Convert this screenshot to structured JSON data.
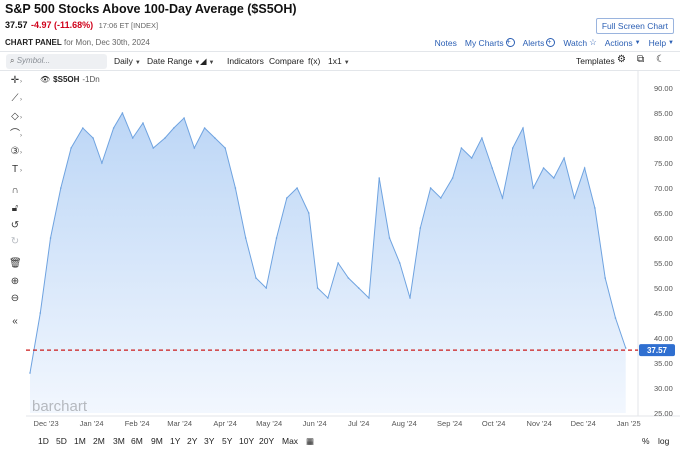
{
  "header": {
    "title": "S&P 500 Stocks Above 100-Day Average ($S5OH)",
    "last": "37.57",
    "change": "-4.97 (-11.68%)",
    "time": "17:06 ET [INDEX]",
    "panel_label": "CHART PANEL",
    "panel_date": "for Mon, Dec 30th, 2024",
    "fullscreen": "Full Screen Chart",
    "links": {
      "notes": "Notes",
      "mycharts": "My Charts",
      "alerts": "Alerts",
      "watch": "Watch",
      "actions": "Actions",
      "help": "Help"
    }
  },
  "toolbar": {
    "symbol_placeholder": "Symbol...",
    "interval": "Daily",
    "date_range": "Date Range",
    "indicators": "Indicators",
    "compare": "Compare",
    "fx": "f(x)",
    "layout": "1x1",
    "templates": "Templates"
  },
  "legend": {
    "symbol": "$S5OH",
    "suffix": "-1Dn"
  },
  "watermark": "barchart",
  "price_tag": "37.57",
  "colors": {
    "line": "#6fa3e0",
    "fill_top": "#bcd6f6",
    "fill_bottom": "#f2f7fe",
    "ref_line": "#cc1a1a",
    "tag_bg": "#2f6fd0"
  },
  "chart_data": {
    "type": "area",
    "series": [
      {
        "x": [
          "2023-11-20",
          "2023-11-27",
          "2023-12-04",
          "2023-12-11",
          "2023-12-18",
          "2023-12-26",
          "2024-01-02",
          "2024-01-08",
          "2024-01-16",
          "2024-01-22",
          "2024-01-29",
          "2024-02-05",
          "2024-02-12",
          "2024-02-20",
          "2024-02-26",
          "2024-03-04",
          "2024-03-11",
          "2024-03-18",
          "2024-03-25",
          "2024-04-01",
          "2024-04-08",
          "2024-04-15",
          "2024-04-22",
          "2024-04-29",
          "2024-05-06",
          "2024-05-13",
          "2024-05-20",
          "2024-05-28",
          "2024-06-03",
          "2024-06-10",
          "2024-06-17",
          "2024-06-24",
          "2024-07-01",
          "2024-07-08",
          "2024-07-15",
          "2024-07-22",
          "2024-07-29",
          "2024-08-05",
          "2024-08-12",
          "2024-08-19",
          "2024-08-26",
          "2024-09-03",
          "2024-09-09",
          "2024-09-16",
          "2024-09-23",
          "2024-09-30",
          "2024-10-07",
          "2024-10-14",
          "2024-10-21",
          "2024-10-28",
          "2024-11-04",
          "2024-11-11",
          "2024-11-18",
          "2024-11-25",
          "2024-12-02",
          "2024-12-09",
          "2024-12-16",
          "2024-12-23",
          "2024-12-30"
        ],
        "values": [
          33,
          45,
          60,
          70,
          78,
          82,
          80,
          75,
          82,
          85,
          80,
          83,
          78,
          80,
          82,
          84,
          78,
          82,
          80,
          78,
          70,
          60,
          52,
          50,
          60,
          68,
          70,
          65,
          50,
          48,
          55,
          52,
          50,
          48,
          72,
          60,
          55,
          48,
          62,
          70,
          68,
          72,
          78,
          76,
          80,
          74,
          68,
          78,
          82,
          70,
          74,
          72,
          76,
          68,
          74,
          66,
          52,
          44,
          38
        ]
      }
    ],
    "ylim": [
      25,
      90
    ],
    "yticks": [
      "90.00",
      "85.00",
      "80.00",
      "75.00",
      "70.00",
      "65.00",
      "60.00",
      "55.00",
      "50.00",
      "45.00",
      "40.00",
      "35.00",
      "30.00",
      "25.00"
    ],
    "xticks": [
      "Dec '23",
      "Jan '24",
      "Feb '24",
      "Mar '24",
      "Apr '24",
      "May '24",
      "Jun '24",
      "Jul '24",
      "Aug '24",
      "Sep '24",
      "Oct '24",
      "Nov '24",
      "Dec '24",
      "Jan '25"
    ],
    "reference_line": 37.57,
    "grid": false
  },
  "bottom": {
    "ranges": [
      "1D",
      "5D",
      "1M",
      "2M",
      "3M",
      "6M",
      "9M",
      "1Y",
      "2Y",
      "3Y",
      "5Y",
      "10Y",
      "20Y",
      "Max"
    ],
    "percent": "%",
    "log": "log"
  }
}
